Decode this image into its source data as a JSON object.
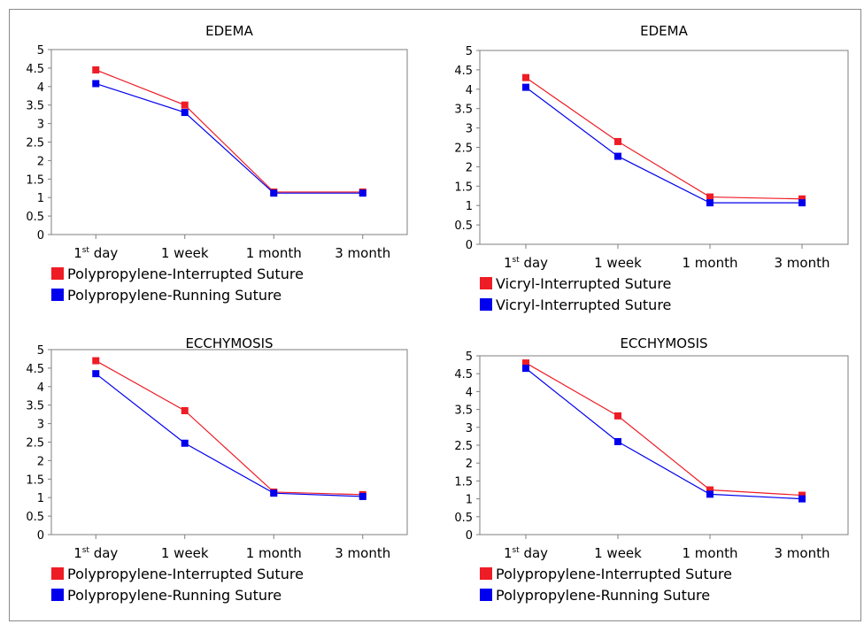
{
  "charts": [
    {
      "title": "EDEMA",
      "categories": [
        "1st day",
        "1 week",
        "1 month",
        "3 month"
      ],
      "series": [
        {
          "name": "Polypropylene-Interrupted Suture",
          "color": "#ee1c25",
          "values": [
            4.45,
            3.5,
            1.15,
            1.15
          ]
        },
        {
          "name": "Polypropylene-Running Suture",
          "color": "#0000ee",
          "values": [
            4.08,
            3.3,
            1.12,
            1.12
          ]
        }
      ]
    },
    {
      "title": "EDEMA",
      "categories": [
        "1st day",
        "1 week",
        "1 month",
        "3 month"
      ],
      "series": [
        {
          "name": "Vicryl-Interrupted Suture",
          "color": "#ee1c25",
          "values": [
            4.3,
            2.65,
            1.22,
            1.17
          ]
        },
        {
          "name": "Vicryl-Interrupted Suture",
          "color": "#0000ee",
          "values": [
            4.05,
            2.27,
            1.07,
            1.07
          ]
        }
      ]
    },
    {
      "title": "ECCHYMOSIS",
      "categories": [
        "1st day",
        "1 week",
        "1 month",
        "3 month"
      ],
      "series": [
        {
          "name": "Polypropylene-Interrupted Suture",
          "color": "#ee1c25",
          "values": [
            4.7,
            3.35,
            1.15,
            1.08
          ]
        },
        {
          "name": "Polypropylene-Running Suture",
          "color": "#0000ee",
          "values": [
            4.35,
            2.47,
            1.12,
            1.03
          ]
        }
      ]
    },
    {
      "title": "ECCHYMOSIS",
      "categories": [
        "1st day",
        "1 week",
        "1 month",
        "3 month"
      ],
      "series": [
        {
          "name": "Polypropylene-Interrupted Suture",
          "color": "#ee1c25",
          "values": [
            4.8,
            3.32,
            1.25,
            1.1
          ]
        },
        {
          "name": "Polypropylene-Running Suture",
          "color": "#0000ee",
          "values": [
            4.65,
            2.6,
            1.13,
            1.0
          ]
        }
      ]
    }
  ],
  "chart_data": [
    {
      "type": "line",
      "title": "EDEMA",
      "categories": [
        "1st day",
        "1 week",
        "1 month",
        "3 month"
      ],
      "ylim": [
        0,
        5
      ],
      "yticks": [
        "0",
        "0.5",
        "1",
        "1.5",
        "2",
        "2.5",
        "3",
        "3.5",
        "4",
        "4.5",
        "5"
      ],
      "series": [
        {
          "name": "Polypropylene-Interrupted Suture",
          "values": [
            4.45,
            3.5,
            1.15,
            1.15
          ]
        },
        {
          "name": "Polypropylene-Running Suture",
          "values": [
            4.08,
            3.3,
            1.12,
            1.12
          ]
        }
      ]
    },
    {
      "type": "line",
      "title": "EDEMA",
      "categories": [
        "1st day",
        "1 week",
        "1 month",
        "3 month"
      ],
      "ylim": [
        0,
        5
      ],
      "yticks": [
        "0",
        "0.5",
        "1",
        "1.5",
        "2",
        "2.5",
        "3",
        "3.5",
        "4",
        "4.5",
        "5"
      ],
      "series": [
        {
          "name": "Vicryl-Interrupted Suture",
          "values": [
            4.3,
            2.65,
            1.22,
            1.17
          ]
        },
        {
          "name": "Vicryl-Interrupted Suture",
          "values": [
            4.05,
            2.27,
            1.07,
            1.07
          ]
        }
      ]
    },
    {
      "type": "line",
      "title": "ECCHYMOSIS",
      "categories": [
        "1st day",
        "1 week",
        "1 month",
        "3 month"
      ],
      "ylim": [
        0,
        5
      ],
      "yticks": [
        "0",
        "0.5",
        "1",
        "1.5",
        "2",
        "2.5",
        "3",
        "3.5",
        "4",
        "4.5",
        "5"
      ],
      "series": [
        {
          "name": "Polypropylene-Interrupted Suture",
          "values": [
            4.7,
            3.35,
            1.15,
            1.08
          ]
        },
        {
          "name": "Polypropylene-Running Suture",
          "values": [
            4.35,
            2.47,
            1.12,
            1.03
          ]
        }
      ]
    },
    {
      "type": "line",
      "title": "ECCHYMOSIS",
      "categories": [
        "1st day",
        "1 week",
        "1 month",
        "3 month"
      ],
      "ylim": [
        0,
        5
      ],
      "yticks": [
        "0",
        "0.5",
        "1",
        "1.5",
        "2",
        "2.5",
        "3",
        "3.5",
        "4",
        "4.5",
        "5"
      ],
      "series": [
        {
          "name": "Polypropylene-Interrupted Suture",
          "values": [
            4.8,
            3.32,
            1.25,
            1.1
          ]
        },
        {
          "name": "Polypropylene-Running Suture",
          "values": [
            4.65,
            2.6,
            1.13,
            1.0
          ]
        }
      ]
    }
  ]
}
